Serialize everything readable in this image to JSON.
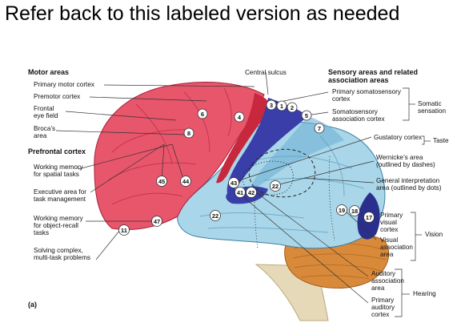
{
  "title": "Refer back to this labeled version as needed",
  "figure_label": "(a)",
  "headers": {
    "motor_areas": "Motor areas",
    "prefrontal_cortex": "Prefrontal cortex",
    "central_sulcus": "Central sulcus",
    "sensory_areas_line1": "Sensory areas and related",
    "sensory_areas_line2": "association areas"
  },
  "left_labels": {
    "primary_motor": "Primary motor cortex",
    "premotor": "Premotor cortex",
    "frontal_eye_1": "Frontal",
    "frontal_eye_2": "eye field",
    "broca_1": "Broca’s",
    "broca_2": "area",
    "wm_spatial_1": "Working memory",
    "wm_spatial_2": "for spatial tasks",
    "exec_1": "Executive area for",
    "exec_2": "task management",
    "wm_object_1": "Working memory",
    "wm_object_2": "for object-recall",
    "wm_object_3": "tasks",
    "solving_1": "Solving complex,",
    "solving_2": "multi-task problems"
  },
  "right_labels": {
    "primary_somato_1": "Primary somatosensory",
    "primary_somato_2": "cortex",
    "somato_assoc_1": "Somatosensory",
    "somato_assoc_2": "association cortex",
    "somatic_1": "Somatic",
    "somatic_2": "sensation",
    "gustatory": "Gustatory cortex",
    "taste": "Taste",
    "wernicke_1": "Wernicke’s area",
    "wernicke_2": "(outlined by dashes)",
    "general_1": "General interpretation",
    "general_2": "area (outlined by dots)",
    "primary_visual_1": "Primary",
    "primary_visual_2": "visual",
    "primary_visual_3": "cortex",
    "visual_assoc_1": "Visual",
    "visual_assoc_2": "association",
    "visual_assoc_3": "area",
    "vision": "Vision",
    "auditory_assoc_1": "Auditory",
    "auditory_assoc_2": "association",
    "auditory_assoc_3": "area",
    "primary_auditory_1": "Primary",
    "primary_auditory_2": "auditory",
    "primary_auditory_3": "cortex",
    "hearing": "Hearing"
  },
  "area_numbers": {
    "n3": "3",
    "n1": "1",
    "n2": "2",
    "n4": "4",
    "n5": "5",
    "n6": "6",
    "n7": "7",
    "n8": "8",
    "n11": "11",
    "n17": "17",
    "n18": "18",
    "n19": "19",
    "n22": "22",
    "n22b": "22",
    "n41": "41",
    "n42": "42",
    "n43": "43",
    "n44": "44",
    "n45": "45",
    "n47": "47"
  },
  "colors": {
    "frontal": "#e8566b",
    "frontal_light": "#f07b8c",
    "motor_dark": "#c8283e",
    "somatosensory": "#3a3ea8",
    "parietal": "#a9d6e8",
    "temporal": "#9fd0e6",
    "occipital_dark": "#2a2f8e",
    "cerebellum": "#d88a3a",
    "brainstem": "#e6d9b8"
  }
}
